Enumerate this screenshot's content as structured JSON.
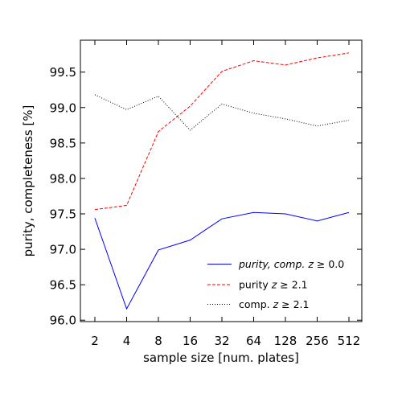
{
  "chart_data": {
    "type": "line",
    "xlabel": "sample size [num. plates]",
    "ylabel": "purity, completeness [%]",
    "categories": [
      "2",
      "4",
      "8",
      "16",
      "32",
      "64",
      "128",
      "256",
      "512"
    ],
    "ylim": [
      95.98,
      99.95
    ],
    "yticks": [
      "96.0",
      "96.5",
      "97.0",
      "97.5",
      "98.0",
      "98.5",
      "99.0",
      "99.5"
    ],
    "ytick_values": [
      96.0,
      96.5,
      97.0,
      97.5,
      98.0,
      98.5,
      99.0,
      99.5
    ],
    "legend_position": "lower-right",
    "grid": false,
    "series": [
      {
        "name_parts": [
          "purity, comp.",
          " z ",
          "≥",
          " 0.0"
        ],
        "values": [
          97.44,
          96.16,
          96.99,
          97.13,
          97.43,
          97.52,
          97.5,
          97.4,
          97.52
        ],
        "color": "#0000ff",
        "style": "solid"
      },
      {
        "name_parts": [
          "purity",
          " z ",
          "≥",
          " 2.1"
        ],
        "values": [
          97.56,
          97.62,
          98.66,
          99.02,
          99.51,
          99.66,
          99.6,
          99.7,
          99.77
        ],
        "color": "#ff0000",
        "style": "dashed"
      },
      {
        "name_parts": [
          "comp.",
          " z ",
          "≥",
          " 2.1"
        ],
        "values": [
          99.18,
          98.97,
          99.16,
          98.68,
          99.05,
          98.92,
          98.84,
          98.74,
          98.82
        ],
        "color": "#000000",
        "style": "dotted"
      }
    ]
  }
}
